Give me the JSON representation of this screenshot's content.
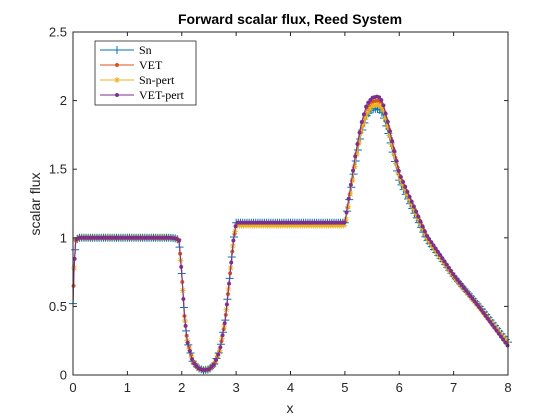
{
  "chart_data": {
    "type": "line",
    "title": "Forward scalar flux, Reed System",
    "xlabel": "x",
    "ylabel": "scalar flux",
    "xlim": [
      0,
      8
    ],
    "ylim": [
      0,
      2.5
    ],
    "xticks": [
      0,
      1,
      2,
      3,
      4,
      5,
      6,
      7,
      8
    ],
    "yticks": [
      0,
      0.5,
      1,
      1.5,
      2,
      2.5
    ],
    "grid": false,
    "legend_position": "top-left",
    "series": [
      {
        "name": "Sn",
        "color": "#0072bd",
        "marker": "plus",
        "x": [
          0,
          0.02,
          0.05,
          0.1,
          0.2,
          0.5,
          1.0,
          1.5,
          1.8,
          1.9,
          1.95,
          2.0,
          2.05,
          2.1,
          2.2,
          2.3,
          2.4,
          2.5,
          2.6,
          2.7,
          2.8,
          2.9,
          2.95,
          3.0,
          3.5,
          4.0,
          4.5,
          4.9,
          5.0,
          5.1,
          5.2,
          5.3,
          5.4,
          5.5,
          5.6,
          5.65,
          5.7,
          5.8,
          6.0,
          6.5,
          7.0,
          7.5,
          8.0
        ],
        "y": [
          0.52,
          0.78,
          0.98,
          1.0,
          1.0,
          1.0,
          1.0,
          1.0,
          1.0,
          0.995,
          0.98,
          0.74,
          0.43,
          0.25,
          0.1,
          0.05,
          0.035,
          0.04,
          0.08,
          0.18,
          0.4,
          0.78,
          0.98,
          1.11,
          1.11,
          1.11,
          1.11,
          1.11,
          1.11,
          1.32,
          1.56,
          1.76,
          1.89,
          1.94,
          1.94,
          1.93,
          1.9,
          1.76,
          1.42,
          0.99,
          0.72,
          0.49,
          0.24
        ]
      },
      {
        "name": "VET",
        "color": "#d95319",
        "marker": "dot",
        "x": [
          0,
          0.02,
          0.05,
          0.1,
          0.2,
          0.5,
          1.0,
          1.5,
          1.8,
          1.9,
          1.95,
          2.0,
          2.05,
          2.1,
          2.2,
          2.3,
          2.4,
          2.5,
          2.6,
          2.7,
          2.8,
          2.9,
          2.95,
          3.0,
          3.5,
          4.0,
          4.5,
          4.9,
          5.0,
          5.1,
          5.2,
          5.3,
          5.4,
          5.5,
          5.6,
          5.65,
          5.7,
          5.8,
          6.0,
          6.5,
          7.0,
          7.5,
          8.0
        ],
        "y": [
          0.52,
          0.78,
          0.98,
          1.0,
          1.0,
          1.0,
          1.0,
          1.0,
          1.0,
          0.995,
          0.98,
          0.74,
          0.43,
          0.25,
          0.1,
          0.05,
          0.035,
          0.04,
          0.08,
          0.18,
          0.4,
          0.78,
          0.98,
          1.1,
          1.1,
          1.1,
          1.1,
          1.1,
          1.1,
          1.34,
          1.59,
          1.8,
          1.94,
          1.99,
          2.0,
          1.99,
          1.96,
          1.81,
          1.46,
          1.01,
          0.72,
          0.48,
          0.22
        ]
      },
      {
        "name": "Sn-pert",
        "color": "#edb120",
        "marker": "asterisk",
        "x": [
          0,
          0.02,
          0.05,
          0.1,
          0.2,
          0.5,
          1.0,
          1.5,
          1.8,
          1.9,
          1.95,
          2.0,
          2.05,
          2.1,
          2.2,
          2.3,
          2.4,
          2.5,
          2.6,
          2.7,
          2.8,
          2.9,
          2.95,
          3.0,
          3.5,
          4.0,
          4.5,
          4.9,
          5.0,
          5.1,
          5.2,
          5.3,
          5.4,
          5.5,
          5.6,
          5.65,
          5.7,
          5.8,
          6.0,
          6.5,
          7.0,
          7.5,
          8.0
        ],
        "y": [
          0.52,
          0.78,
          0.98,
          1.0,
          1.0,
          1.0,
          1.0,
          1.0,
          1.0,
          0.995,
          0.98,
          0.74,
          0.43,
          0.25,
          0.1,
          0.05,
          0.035,
          0.04,
          0.08,
          0.18,
          0.4,
          0.78,
          0.98,
          1.09,
          1.09,
          1.09,
          1.09,
          1.09,
          1.09,
          1.32,
          1.57,
          1.77,
          1.9,
          1.96,
          1.97,
          1.96,
          1.93,
          1.78,
          1.44,
          1.0,
          0.72,
          0.48,
          0.23
        ]
      },
      {
        "name": "VET-pert",
        "color": "#7e2f8e",
        "marker": "dot",
        "x": [
          0,
          0.02,
          0.05,
          0.1,
          0.2,
          0.5,
          1.0,
          1.5,
          1.8,
          1.9,
          1.95,
          2.0,
          2.05,
          2.1,
          2.2,
          2.3,
          2.4,
          2.5,
          2.6,
          2.7,
          2.8,
          2.9,
          2.95,
          3.0,
          3.5,
          4.0,
          4.5,
          4.9,
          5.0,
          5.1,
          5.2,
          5.3,
          5.4,
          5.5,
          5.6,
          5.65,
          5.7,
          5.8,
          6.0,
          6.5,
          7.0,
          7.5,
          8.0
        ],
        "y": [
          0.52,
          0.78,
          0.98,
          1.0,
          1.0,
          1.0,
          1.0,
          1.0,
          1.0,
          0.995,
          0.98,
          0.74,
          0.43,
          0.25,
          0.1,
          0.05,
          0.035,
          0.04,
          0.08,
          0.18,
          0.4,
          0.78,
          0.98,
          1.11,
          1.11,
          1.11,
          1.11,
          1.11,
          1.11,
          1.36,
          1.62,
          1.83,
          1.97,
          2.02,
          2.03,
          2.02,
          1.98,
          1.83,
          1.47,
          1.02,
          0.73,
          0.48,
          0.21
        ]
      }
    ]
  }
}
